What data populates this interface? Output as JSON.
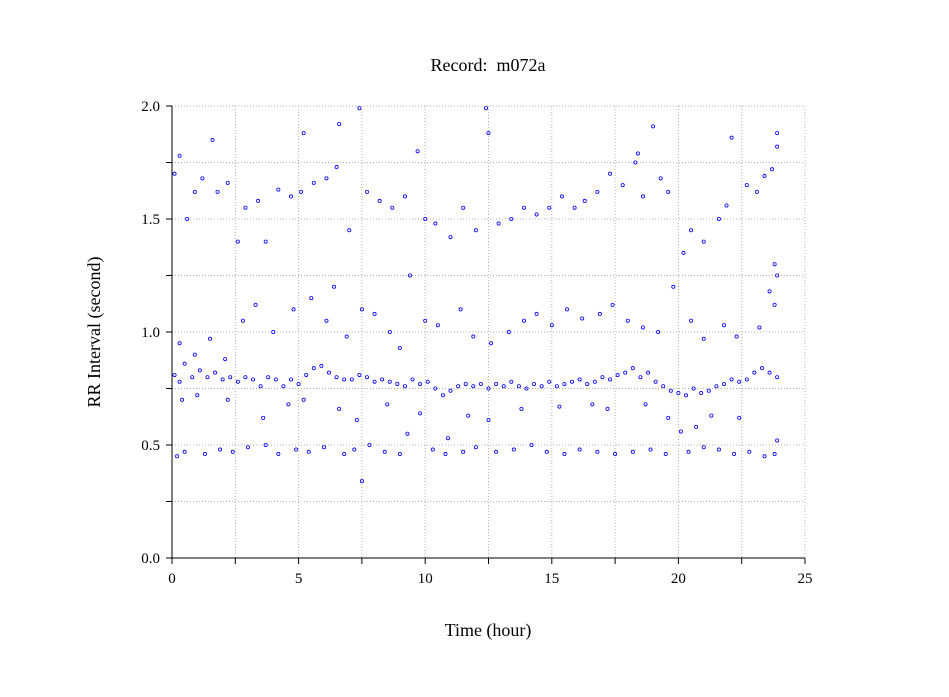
{
  "chart_data": {
    "type": "scatter",
    "title": "Record:  m072a",
    "xlabel": "Time (hour)",
    "ylabel": "RR Interval (second)",
    "xlim": [
      0,
      25
    ],
    "ylim": [
      0,
      2.0
    ],
    "x_ticks": [
      "0",
      "5",
      "10",
      "15",
      "20",
      "25"
    ],
    "y_ticks": [
      "0.0",
      "0.5",
      "1.0",
      "1.5",
      "2.0"
    ],
    "grid": true,
    "marker_color": "#0000ff",
    "series": [
      {
        "values": [
          [
            0.1,
            0.81
          ],
          [
            0.3,
            0.78
          ],
          [
            0.5,
            0.86
          ],
          [
            0.8,
            0.8
          ],
          [
            1.1,
            0.83
          ],
          [
            1.4,
            0.8
          ],
          [
            1.7,
            0.82
          ],
          [
            2.0,
            0.79
          ],
          [
            2.3,
            0.8
          ],
          [
            2.6,
            0.78
          ],
          [
            2.9,
            0.8
          ],
          [
            3.2,
            0.79
          ],
          [
            3.5,
            0.76
          ],
          [
            3.8,
            0.8
          ],
          [
            4.1,
            0.79
          ],
          [
            4.4,
            0.76
          ],
          [
            4.7,
            0.79
          ],
          [
            5.0,
            0.77
          ],
          [
            5.3,
            0.81
          ],
          [
            5.6,
            0.84
          ],
          [
            5.9,
            0.85
          ],
          [
            6.2,
            0.82
          ],
          [
            6.5,
            0.8
          ],
          [
            6.8,
            0.79
          ],
          [
            7.1,
            0.79
          ],
          [
            7.4,
            0.81
          ],
          [
            7.7,
            0.8
          ],
          [
            8.0,
            0.78
          ],
          [
            8.3,
            0.79
          ],
          [
            8.6,
            0.78
          ],
          [
            8.9,
            0.77
          ],
          [
            9.2,
            0.76
          ],
          [
            9.5,
            0.79
          ],
          [
            9.8,
            0.77
          ],
          [
            10.1,
            0.78
          ],
          [
            10.4,
            0.75
          ],
          [
            10.7,
            0.72
          ],
          [
            11.0,
            0.74
          ],
          [
            11.3,
            0.76
          ],
          [
            11.6,
            0.77
          ],
          [
            11.9,
            0.76
          ],
          [
            12.2,
            0.77
          ],
          [
            12.5,
            0.75
          ],
          [
            12.8,
            0.77
          ],
          [
            13.1,
            0.76
          ],
          [
            13.4,
            0.78
          ],
          [
            13.7,
            0.76
          ],
          [
            14.0,
            0.75
          ],
          [
            14.3,
            0.77
          ],
          [
            14.6,
            0.76
          ],
          [
            14.9,
            0.78
          ],
          [
            15.2,
            0.76
          ],
          [
            15.5,
            0.77
          ],
          [
            15.8,
            0.78
          ],
          [
            16.1,
            0.79
          ],
          [
            16.4,
            0.77
          ],
          [
            16.7,
            0.78
          ],
          [
            17.0,
            0.8
          ],
          [
            17.3,
            0.79
          ],
          [
            17.6,
            0.81
          ],
          [
            17.9,
            0.82
          ],
          [
            18.2,
            0.84
          ],
          [
            18.5,
            0.8
          ],
          [
            18.8,
            0.82
          ],
          [
            19.1,
            0.78
          ],
          [
            19.4,
            0.76
          ],
          [
            19.7,
            0.74
          ],
          [
            20.0,
            0.73
          ],
          [
            20.3,
            0.72
          ],
          [
            20.6,
            0.75
          ],
          [
            20.9,
            0.73
          ],
          [
            21.2,
            0.74
          ],
          [
            21.5,
            0.76
          ],
          [
            21.8,
            0.77
          ],
          [
            22.1,
            0.79
          ],
          [
            22.4,
            0.78
          ],
          [
            22.7,
            0.79
          ],
          [
            23.0,
            0.82
          ],
          [
            23.3,
            0.84
          ],
          [
            23.6,
            0.82
          ],
          [
            23.9,
            0.8
          ],
          [
            0.4,
            0.7
          ],
          [
            1.0,
            0.72
          ],
          [
            2.2,
            0.7
          ],
          [
            3.6,
            0.62
          ],
          [
            4.6,
            0.68
          ],
          [
            5.2,
            0.7
          ],
          [
            6.6,
            0.66
          ],
          [
            7.3,
            0.61
          ],
          [
            8.5,
            0.68
          ],
          [
            9.3,
            0.55
          ],
          [
            9.8,
            0.64
          ],
          [
            10.9,
            0.53
          ],
          [
            11.7,
            0.63
          ],
          [
            12.5,
            0.61
          ],
          [
            13.8,
            0.66
          ],
          [
            15.3,
            0.67
          ],
          [
            16.6,
            0.68
          ],
          [
            17.2,
            0.66
          ],
          [
            18.7,
            0.68
          ],
          [
            19.6,
            0.62
          ],
          [
            20.1,
            0.56
          ],
          [
            20.7,
            0.58
          ],
          [
            21.3,
            0.63
          ],
          [
            22.4,
            0.62
          ],
          [
            23.9,
            0.52
          ],
          [
            0.3,
            0.95
          ],
          [
            0.9,
            0.9
          ],
          [
            1.5,
            0.97
          ],
          [
            2.1,
            0.88
          ],
          [
            2.8,
            1.05
          ],
          [
            3.3,
            1.12
          ],
          [
            4.0,
            1.0
          ],
          [
            4.8,
            1.1
          ],
          [
            5.5,
            1.15
          ],
          [
            6.1,
            1.05
          ],
          [
            6.9,
            0.98
          ],
          [
            7.5,
            1.1
          ],
          [
            8.0,
            1.08
          ],
          [
            8.6,
            1.0
          ],
          [
            9.0,
            0.93
          ],
          [
            10.0,
            1.05
          ],
          [
            10.5,
            1.03
          ],
          [
            11.4,
            1.1
          ],
          [
            11.9,
            0.98
          ],
          [
            12.6,
            0.95
          ],
          [
            13.3,
            1.0
          ],
          [
            13.9,
            1.05
          ],
          [
            14.4,
            1.08
          ],
          [
            15.0,
            1.03
          ],
          [
            15.6,
            1.1
          ],
          [
            16.2,
            1.06
          ],
          [
            16.9,
            1.08
          ],
          [
            17.4,
            1.12
          ],
          [
            18.0,
            1.05
          ],
          [
            18.6,
            1.02
          ],
          [
            19.2,
            1.0
          ],
          [
            20.5,
            1.05
          ],
          [
            21.0,
            0.97
          ],
          [
            21.8,
            1.03
          ],
          [
            22.3,
            0.98
          ],
          [
            23.2,
            1.02
          ],
          [
            23.8,
            1.12
          ],
          [
            0.5,
            0.47
          ],
          [
            1.3,
            0.46
          ],
          [
            1.9,
            0.48
          ],
          [
            2.4,
            0.47
          ],
          [
            3.0,
            0.49
          ],
          [
            3.7,
            0.5
          ],
          [
            4.2,
            0.46
          ],
          [
            4.9,
            0.48
          ],
          [
            5.4,
            0.47
          ],
          [
            6.0,
            0.49
          ],
          [
            6.8,
            0.46
          ],
          [
            7.2,
            0.48
          ],
          [
            7.8,
            0.5
          ],
          [
            8.4,
            0.47
          ],
          [
            9.0,
            0.46
          ],
          [
            10.3,
            0.48
          ],
          [
            10.8,
            0.46
          ],
          [
            11.5,
            0.47
          ],
          [
            12.0,
            0.49
          ],
          [
            12.8,
            0.47
          ],
          [
            13.5,
            0.48
          ],
          [
            14.2,
            0.5
          ],
          [
            14.8,
            0.47
          ],
          [
            15.5,
            0.46
          ],
          [
            16.1,
            0.48
          ],
          [
            16.8,
            0.47
          ],
          [
            17.5,
            0.46
          ],
          [
            18.2,
            0.47
          ],
          [
            18.9,
            0.48
          ],
          [
            19.5,
            0.46
          ],
          [
            20.4,
            0.47
          ],
          [
            21.0,
            0.49
          ],
          [
            21.6,
            0.48
          ],
          [
            22.2,
            0.46
          ],
          [
            22.8,
            0.47
          ],
          [
            23.4,
            0.45
          ],
          [
            23.8,
            0.46
          ],
          [
            7.5,
            0.34
          ],
          [
            0.2,
            0.45
          ],
          [
            0.1,
            1.7
          ],
          [
            0.3,
            1.78
          ],
          [
            0.6,
            1.5
          ],
          [
            0.9,
            1.62
          ],
          [
            1.2,
            1.68
          ],
          [
            1.6,
            1.85
          ],
          [
            1.8,
            1.62
          ],
          [
            2.2,
            1.66
          ],
          [
            2.6,
            1.4
          ],
          [
            2.9,
            1.55
          ],
          [
            3.4,
            1.58
          ],
          [
            3.7,
            1.4
          ],
          [
            4.2,
            1.63
          ],
          [
            4.7,
            1.6
          ],
          [
            5.1,
            1.62
          ],
          [
            5.6,
            1.66
          ],
          [
            6.1,
            1.68
          ],
          [
            6.5,
            1.73
          ],
          [
            6.6,
            1.92
          ],
          [
            5.2,
            1.88
          ],
          [
            7.0,
            1.45
          ],
          [
            7.4,
            1.99
          ],
          [
            7.7,
            1.62
          ],
          [
            8.2,
            1.58
          ],
          [
            8.7,
            1.55
          ],
          [
            9.2,
            1.6
          ],
          [
            9.7,
            1.8
          ],
          [
            10.0,
            1.5
          ],
          [
            10.4,
            1.48
          ],
          [
            11.0,
            1.42
          ],
          [
            11.5,
            1.55
          ],
          [
            12.0,
            1.45
          ],
          [
            12.4,
            1.99
          ],
          [
            12.5,
            1.88
          ],
          [
            12.9,
            1.48
          ],
          [
            13.4,
            1.5
          ],
          [
            13.9,
            1.55
          ],
          [
            14.4,
            1.52
          ],
          [
            14.9,
            1.55
          ],
          [
            15.4,
            1.6
          ],
          [
            15.9,
            1.55
          ],
          [
            16.3,
            1.58
          ],
          [
            16.8,
            1.62
          ],
          [
            17.3,
            1.7
          ],
          [
            17.8,
            1.65
          ],
          [
            18.3,
            1.75
          ],
          [
            18.4,
            1.79
          ],
          [
            18.6,
            1.6
          ],
          [
            19.0,
            1.91
          ],
          [
            19.3,
            1.68
          ],
          [
            19.6,
            1.62
          ],
          [
            20.2,
            1.35
          ],
          [
            20.5,
            1.45
          ],
          [
            21.0,
            1.4
          ],
          [
            21.6,
            1.5
          ],
          [
            21.9,
            1.56
          ],
          [
            22.1,
            1.86
          ],
          [
            22.7,
            1.65
          ],
          [
            23.1,
            1.62
          ],
          [
            23.4,
            1.69
          ],
          [
            23.7,
            1.72
          ],
          [
            23.9,
            1.88
          ],
          [
            23.9,
            1.82
          ],
          [
            23.8,
            1.3
          ],
          [
            23.9,
            1.25
          ],
          [
            6.4,
            1.2
          ],
          [
            9.4,
            1.25
          ],
          [
            19.8,
            1.2
          ],
          [
            23.6,
            1.18
          ]
        ]
      }
    ]
  }
}
